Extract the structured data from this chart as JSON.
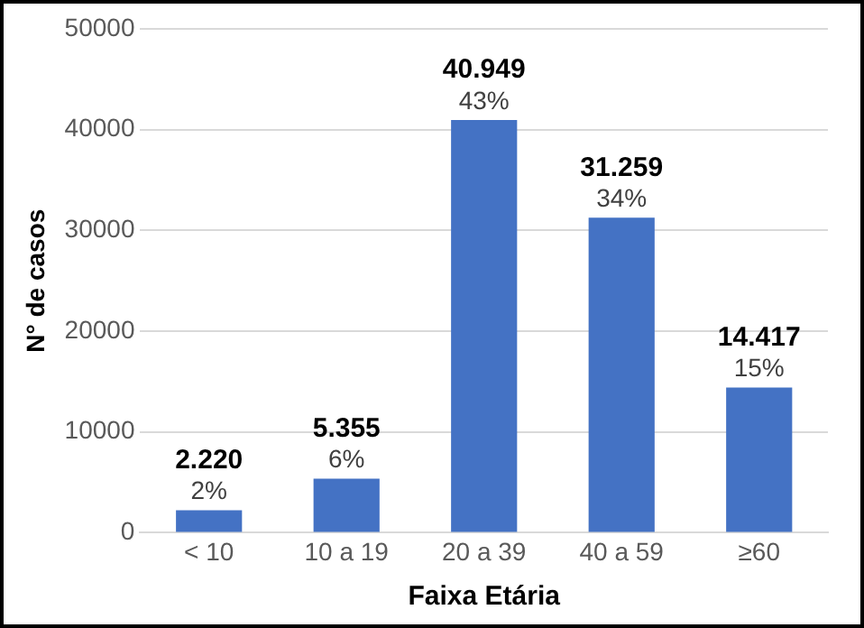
{
  "chart_data": {
    "type": "bar",
    "xlabel": "Faixa Etária",
    "ylabel": "N° de casos",
    "categories": [
      "< 10",
      "10 a 19",
      "20 a 39",
      "40 a 59",
      "≥60"
    ],
    "values": [
      2220,
      5355,
      40949,
      31259,
      14417
    ],
    "color": "#4472c4",
    "value_labels": [
      "2.220\n2%",
      "5.355\n6%",
      "40.949\n43%",
      "31.259\n34%",
      "14.417\n15%"
    ],
    "ylim": [
      0,
      50000
    ],
    "yticks": [
      0,
      10000,
      20000,
      30000,
      40000,
      50000
    ],
    "grid": "y",
    "legend": false
  }
}
